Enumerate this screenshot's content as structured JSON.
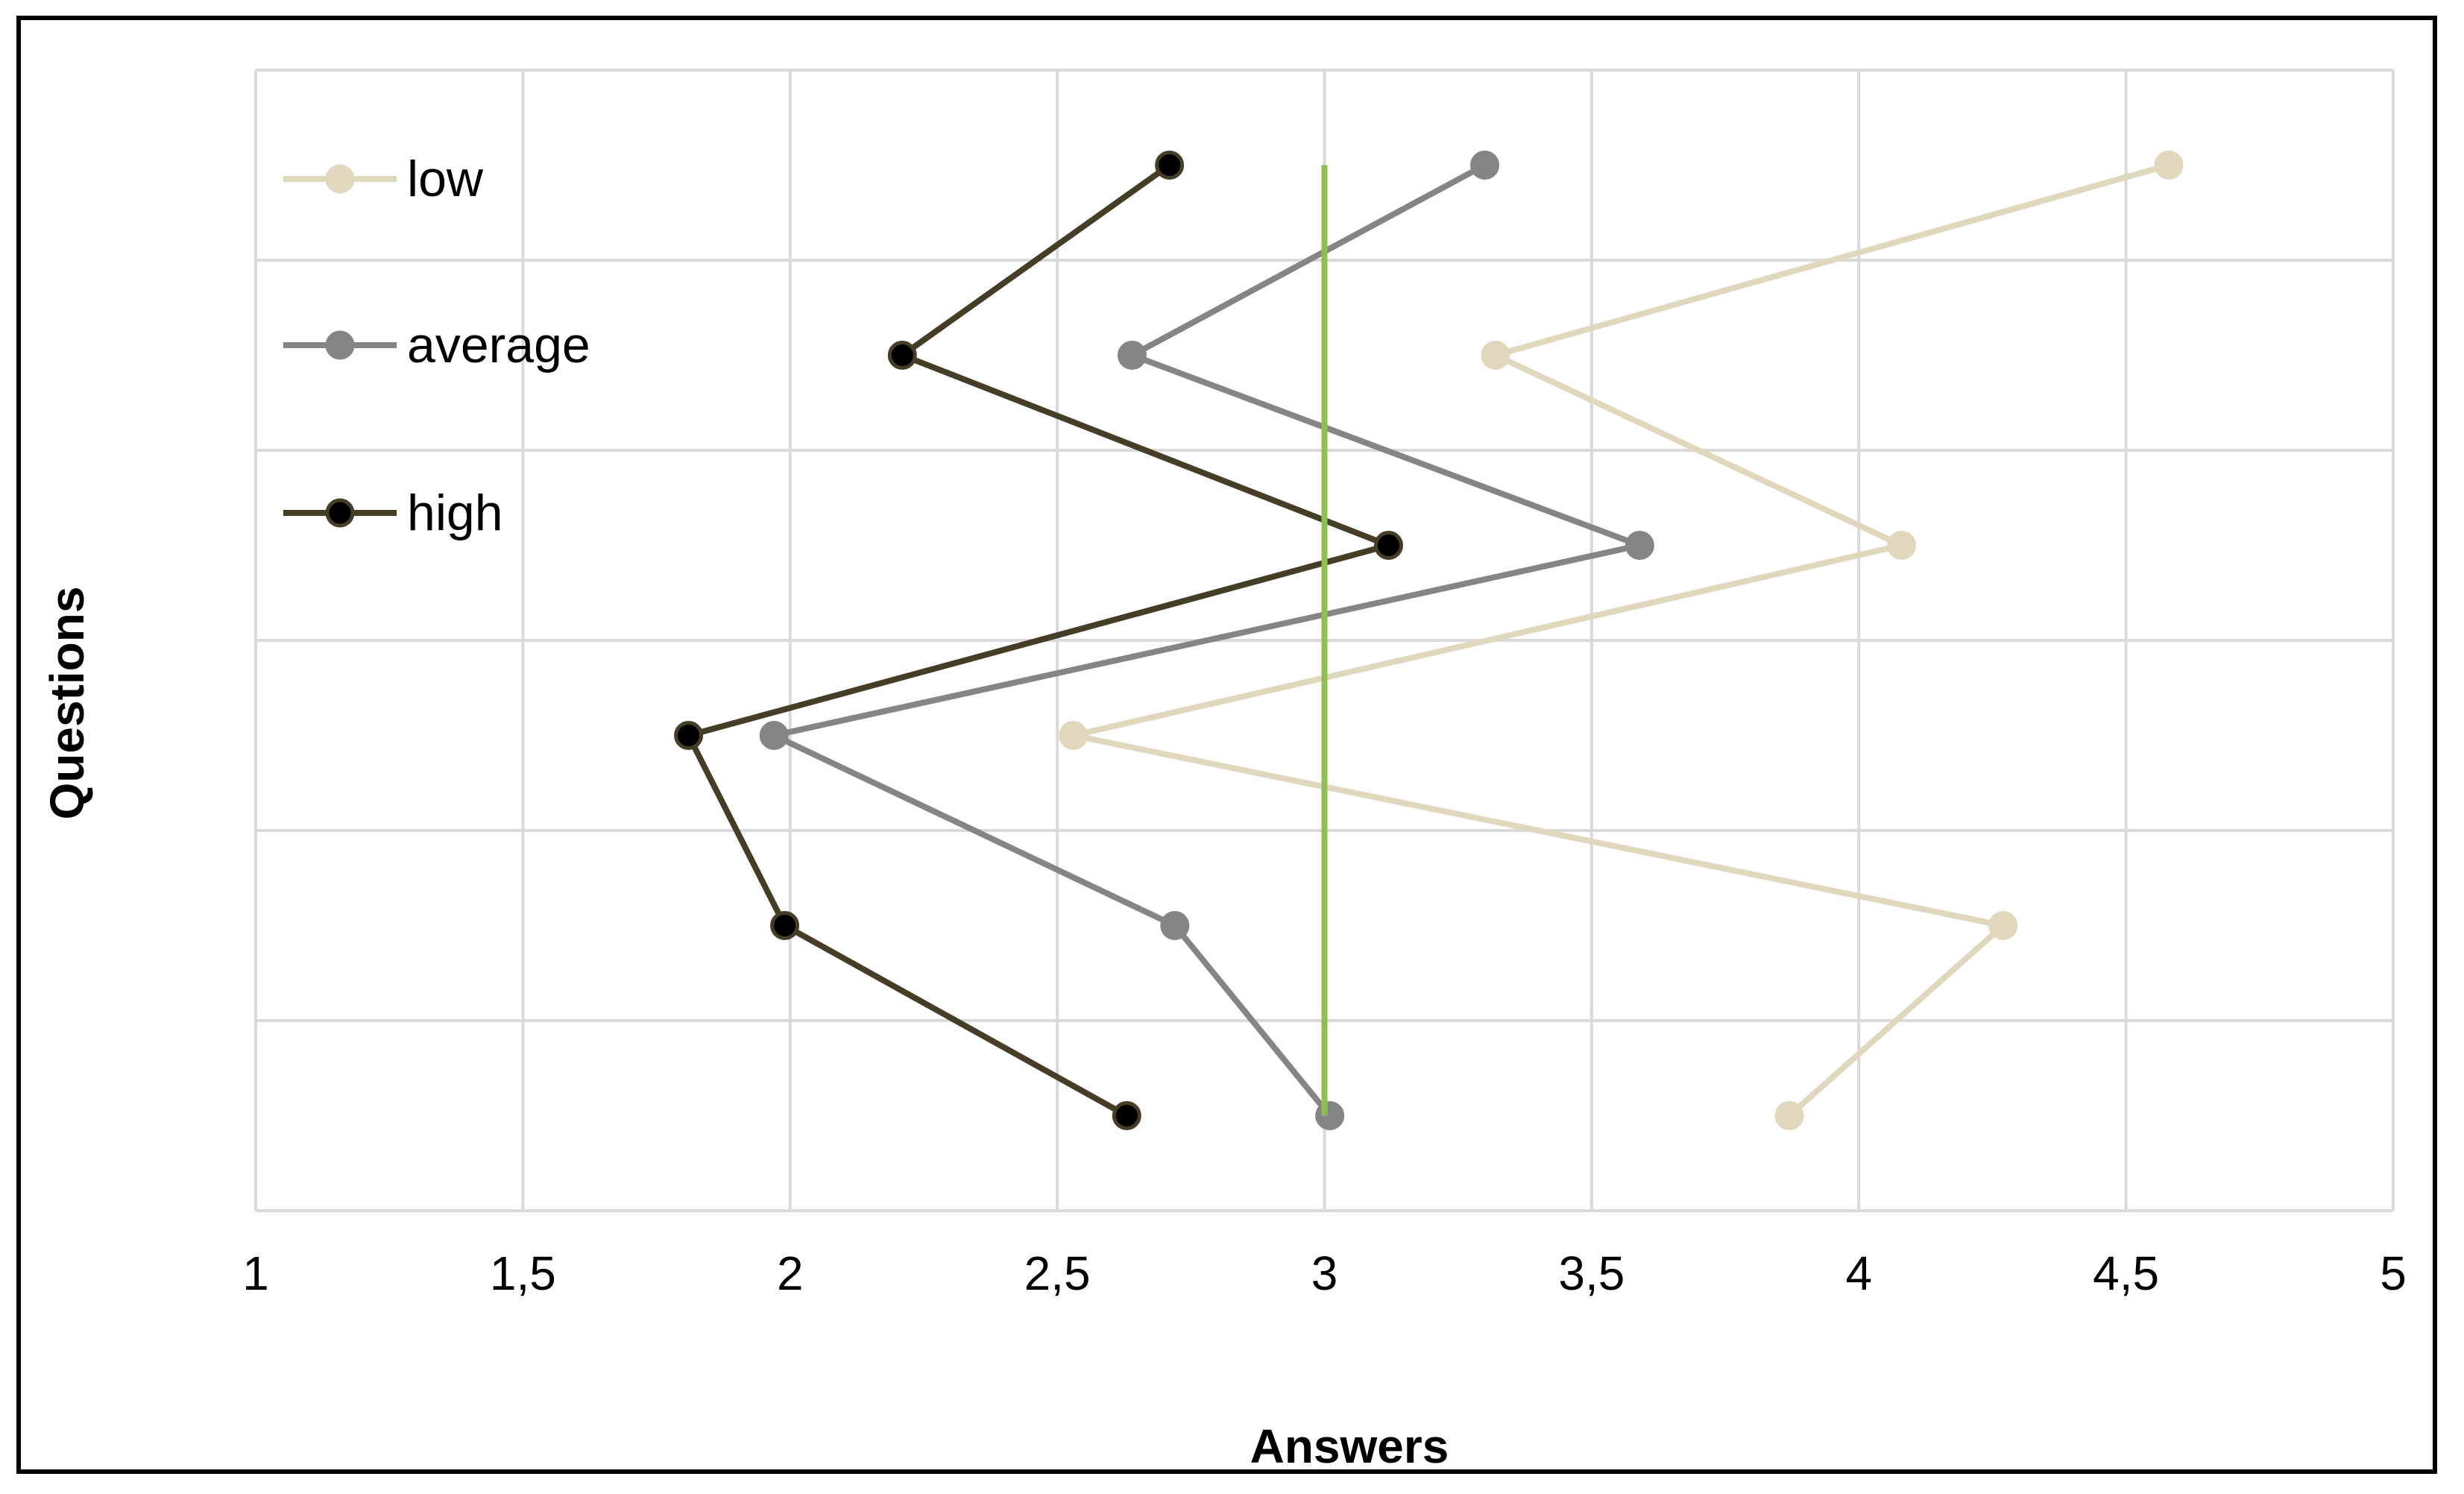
{
  "chart_data": {
    "type": "line",
    "orientation": "horizontal-values",
    "title": "",
    "xlabel": "Answers",
    "ylabel": "Questions",
    "xlim": [
      1,
      5
    ],
    "xticks": [
      "1",
      "1,5",
      "2",
      "2,5",
      "3",
      "3,5",
      "4",
      "4,5",
      "5"
    ],
    "grid": true,
    "legend_position": "top-left",
    "question_count": 6,
    "series": [
      {
        "name": "low",
        "color": "#e0d7bd",
        "values": [
          4.58,
          3.32,
          4.08,
          2.53,
          4.27,
          3.87
        ]
      },
      {
        "name": "average",
        "color": "#858585",
        "values": [
          3.3,
          2.64,
          3.59,
          1.97,
          2.72,
          3.01
        ]
      },
      {
        "name": "high",
        "color": "#463d26",
        "marker_fill": "#000000",
        "values": [
          2.71,
          2.21,
          3.12,
          1.81,
          1.99,
          2.63
        ]
      }
    ],
    "reference_line": {
      "x": 3,
      "color": "#8cc152"
    }
  }
}
